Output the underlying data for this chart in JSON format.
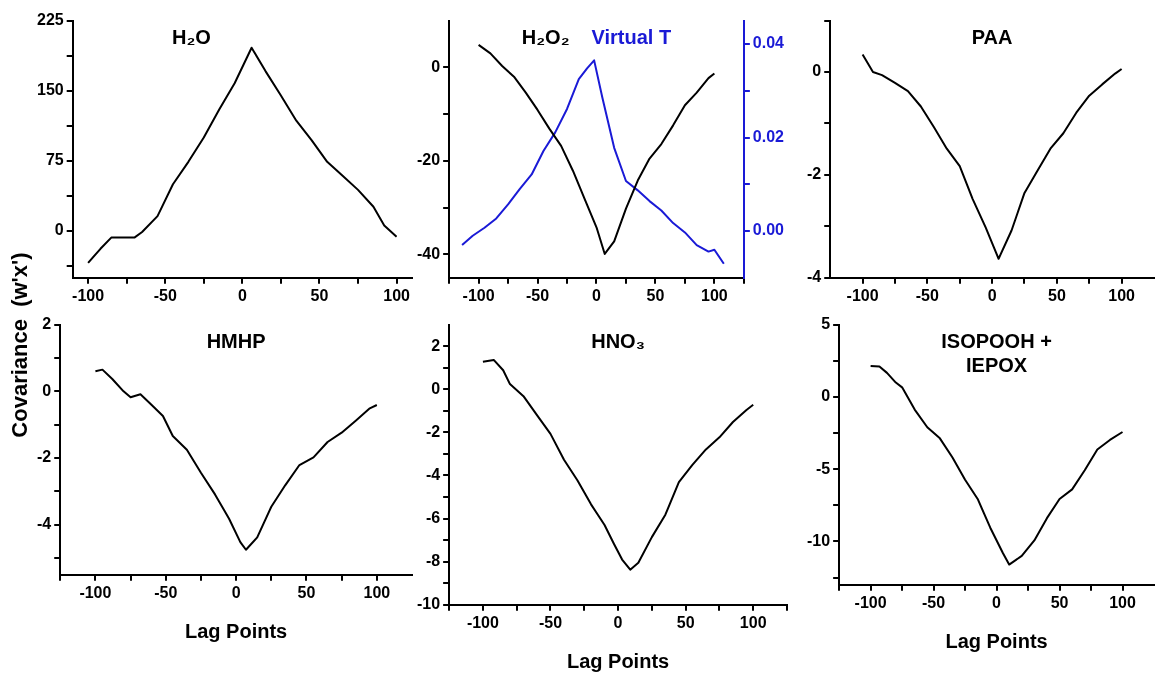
{
  "chart_data": [
    {
      "type": "line",
      "title": "H₂O",
      "ylabel": "Covariance  (w'x')",
      "xlim": [
        -110,
        110
      ],
      "xticks": [
        -100,
        {
          "value": -75,
          "label": null
        },
        -50,
        {
          "value": -25,
          "label": null
        },
        0,
        {
          "value": 25,
          "label": null
        },
        50,
        {
          "value": 75,
          "label": null
        },
        100
      ],
      "ylim": [
        -50,
        225
      ],
      "yticks": [
        {
          "value": -37.5,
          "label": null
        },
        0,
        {
          "value": 37.5,
          "label": null
        },
        75,
        {
          "value": 112.5,
          "label": null
        },
        150,
        {
          "value": 187.5,
          "label": null
        },
        225
      ],
      "series": [
        {
          "color": "#000000",
          "x": [
            -100,
            -92,
            -85,
            -70,
            -65,
            -55,
            -45,
            -35,
            -25,
            -15,
            -5,
            6,
            15,
            25,
            35,
            45,
            55,
            65,
            75,
            85,
            92,
            100
          ],
          "values": [
            -34,
            -19,
            -7,
            -7,
            -1,
            16,
            50,
            74,
            100,
            130,
            158,
            196,
            171,
            145,
            118,
            97,
            74,
            59,
            44,
            26,
            6,
            -6
          ]
        }
      ]
    },
    {
      "type": "line",
      "title": null,
      "xlim": [
        -125,
        125
      ],
      "xticks": [
        {
          "value": -125,
          "label": null
        },
        -100,
        {
          "value": -75,
          "label": null
        },
        -50,
        {
          "value": -25,
          "label": null
        },
        0,
        {
          "value": 25,
          "label": null
        },
        50,
        {
          "value": 75,
          "label": null
        },
        100,
        {
          "value": 125,
          "label": null
        }
      ],
      "ylim": [
        -45,
        10
      ],
      "yticks": [
        -40,
        {
          "value": -30,
          "label": null
        },
        -20,
        {
          "value": -10,
          "label": null
        },
        0
      ],
      "y2lim": [
        -0.01,
        0.045
      ],
      "y2ticks": [
        {
          "value": 0,
          "label": "0.00"
        },
        {
          "value": 0.01,
          "label": null
        },
        {
          "value": 0.02,
          "label": "0.02"
        },
        {
          "value": 0.03,
          "label": null
        },
        {
          "value": 0.04,
          "label": "0.04"
        }
      ],
      "series": [
        {
          "name": "H₂O₂",
          "color": "#000000",
          "x": [
            -100,
            -90,
            -80,
            -70,
            -60,
            -50,
            -40,
            -30,
            -20,
            -10,
            0,
            7,
            15,
            25,
            35,
            45,
            55,
            65,
            75,
            85,
            95,
            100
          ],
          "values": [
            4.8,
            3.0,
            0.3,
            -2.0,
            -5.4,
            -9.1,
            -13.1,
            -16.8,
            -22.1,
            -28.2,
            -34.2,
            -39.9,
            -37.2,
            -30.2,
            -24.2,
            -19.5,
            -16.4,
            -12.4,
            -8.1,
            -5.4,
            -2.3,
            -1.3
          ]
        },
        {
          "name": "Virtual T",
          "color": "#1a1ad6",
          "axis": "y2",
          "x": [
            -114,
            -105,
            -95,
            -85,
            -75,
            -65,
            -55,
            -45,
            -35,
            -25,
            -15,
            -8,
            -2,
            5,
            15,
            25,
            35,
            45,
            55,
            65,
            75,
            85,
            95,
            100,
            108
          ],
          "values": [
            -0.003,
            -0.001,
            0.0007,
            0.0027,
            0.0057,
            0.009,
            0.0121,
            0.0171,
            0.0211,
            0.0261,
            0.0325,
            0.0348,
            0.0365,
            0.0285,
            0.0178,
            0.0107,
            0.0087,
            0.0064,
            0.0044,
            0.0017,
            -0.0003,
            -0.003,
            -0.0044,
            -0.004,
            -0.007
          ]
        }
      ]
    },
    {
      "type": "line",
      "title": "PAA",
      "xlim": [
        -125,
        125
      ],
      "xticks": [
        -100,
        {
          "value": -75,
          "label": null
        },
        -50,
        {
          "value": -25,
          "label": null
        },
        0,
        {
          "value": 25,
          "label": null
        },
        50,
        {
          "value": 75,
          "label": null
        },
        100
      ],
      "ylim": [
        -4,
        1
      ],
      "yticks": [
        -4,
        {
          "value": -3,
          "label": null
        },
        -2,
        {
          "value": -1,
          "label": null
        },
        0,
        {
          "value": 1,
          "label": null
        }
      ],
      "series": [
        {
          "color": "#000000",
          "x": [
            -100,
            -92,
            -85,
            -75,
            -65,
            -55,
            -45,
            -35,
            -25,
            -15,
            -5,
            5,
            15,
            25,
            35,
            45,
            55,
            65,
            75,
            85,
            95,
            100
          ],
          "values": [
            0.34,
            0.0,
            -0.06,
            -0.21,
            -0.37,
            -0.67,
            -1.07,
            -1.49,
            -1.83,
            -2.47,
            -3.02,
            -3.63,
            -3.08,
            -2.35,
            -1.92,
            -1.49,
            -1.19,
            -0.79,
            -0.46,
            -0.24,
            -0.03,
            0.06
          ]
        }
      ]
    },
    {
      "type": "line",
      "title": "HMHP",
      "xlabel": "Lag Points",
      "xlim": [
        -125,
        125
      ],
      "xticks": [
        {
          "value": -125,
          "label": null
        },
        -100,
        {
          "value": -75,
          "label": null
        },
        -50,
        {
          "value": -25,
          "label": null
        },
        0,
        {
          "value": 25,
          "label": null
        },
        50,
        {
          "value": 75,
          "label": null
        },
        100
      ],
      "ylim": [
        -5.5,
        2
      ],
      "yticks": [
        {
          "value": -5,
          "label": null
        },
        -4,
        {
          "value": -3,
          "label": null
        },
        -2,
        {
          "value": -1,
          "label": null
        },
        0,
        {
          "value": 1,
          "label": null
        },
        2
      ],
      "series": [
        {
          "color": "#000000",
          "x": [
            -100,
            -95,
            -88,
            -80,
            -75,
            -68,
            -60,
            -52,
            -45,
            -35,
            -25,
            -15,
            -5,
            3,
            7,
            15,
            25,
            35,
            45,
            55,
            65,
            75,
            85,
            95,
            100
          ],
          "values": [
            0.6,
            0.65,
            0.37,
            0.0,
            -0.18,
            -0.09,
            -0.41,
            -0.74,
            -1.34,
            -1.75,
            -2.44,
            -3.09,
            -3.82,
            -4.52,
            -4.75,
            -4.38,
            -3.46,
            -2.81,
            -2.21,
            -1.98,
            -1.52,
            -1.24,
            -0.88,
            -0.51,
            -0.41
          ]
        }
      ]
    },
    {
      "type": "line",
      "title": "HNO₃",
      "xlabel": "Lag Points",
      "xlim": [
        -125,
        125
      ],
      "xticks": [
        {
          "value": -125,
          "label": null
        },
        -100,
        {
          "value": -75,
          "label": null
        },
        -50,
        {
          "value": -25,
          "label": null
        },
        0,
        {
          "value": 25,
          "label": null
        },
        50,
        {
          "value": 75,
          "label": null
        },
        100,
        {
          "value": 125,
          "label": null
        }
      ],
      "ylim": [
        -10,
        3
      ],
      "yticks": [
        -10,
        {
          "value": -9,
          "label": null
        },
        -8,
        {
          "value": -7,
          "label": null
        },
        -6,
        {
          "value": -5,
          "label": null
        },
        -4,
        {
          "value": -3,
          "label": null
        },
        -2,
        {
          "value": -1,
          "label": null
        },
        0,
        {
          "value": 1,
          "label": null
        },
        2
      ],
      "series": [
        {
          "color": "#000000",
          "x": [
            -100,
            -92,
            -85,
            -80,
            -70,
            -60,
            -50,
            -40,
            -30,
            -20,
            -10,
            -3,
            3,
            9,
            15,
            25,
            35,
            45,
            55,
            65,
            75,
            85,
            95,
            100
          ],
          "values": [
            1.28,
            1.36,
            0.88,
            0.24,
            -0.32,
            -1.2,
            -2.07,
            -3.27,
            -4.23,
            -5.34,
            -6.3,
            -7.18,
            -7.9,
            -8.37,
            -8.05,
            -6.86,
            -5.82,
            -4.31,
            -3.51,
            -2.79,
            -2.23,
            -1.52,
            -0.96,
            -0.72
          ]
        }
      ]
    },
    {
      "type": "line",
      "title": "ISOPOOH + IEPOX",
      "xlabel": "Lag Points",
      "xlim": [
        -125,
        125
      ],
      "xticks": [
        {
          "value": -125,
          "label": null
        },
        -100,
        {
          "value": -75,
          "label": null
        },
        -50,
        {
          "value": -25,
          "label": null
        },
        0,
        {
          "value": 25,
          "label": null
        },
        50,
        {
          "value": 75,
          "label": null
        },
        100
      ],
      "ylim": [
        -13,
        5
      ],
      "yticks": [
        {
          "value": -12.5,
          "label": null
        },
        -10,
        {
          "value": -7.5,
          "label": null
        },
        -5,
        {
          "value": -2.5,
          "label": null
        },
        0,
        {
          "value": 2.5,
          "label": null
        },
        5
      ],
      "series": [
        {
          "color": "#000000",
          "x": [
            -100,
            -93,
            -87,
            -80,
            -75,
            -65,
            -55,
            -45,
            -35,
            -25,
            -15,
            -5,
            5,
            10,
            20,
            30,
            40,
            50,
            60,
            70,
            80,
            90,
            100
          ],
          "values": [
            2.14,
            2.1,
            1.66,
            0.99,
            0.66,
            -0.88,
            -2.1,
            -2.87,
            -4.19,
            -5.73,
            -7.06,
            -9.05,
            -10.8,
            -11.6,
            -11.0,
            -9.93,
            -8.39,
            -7.06,
            -6.4,
            -5.08,
            -3.64,
            -2.98,
            -2.43
          ]
        }
      ]
    }
  ]
}
